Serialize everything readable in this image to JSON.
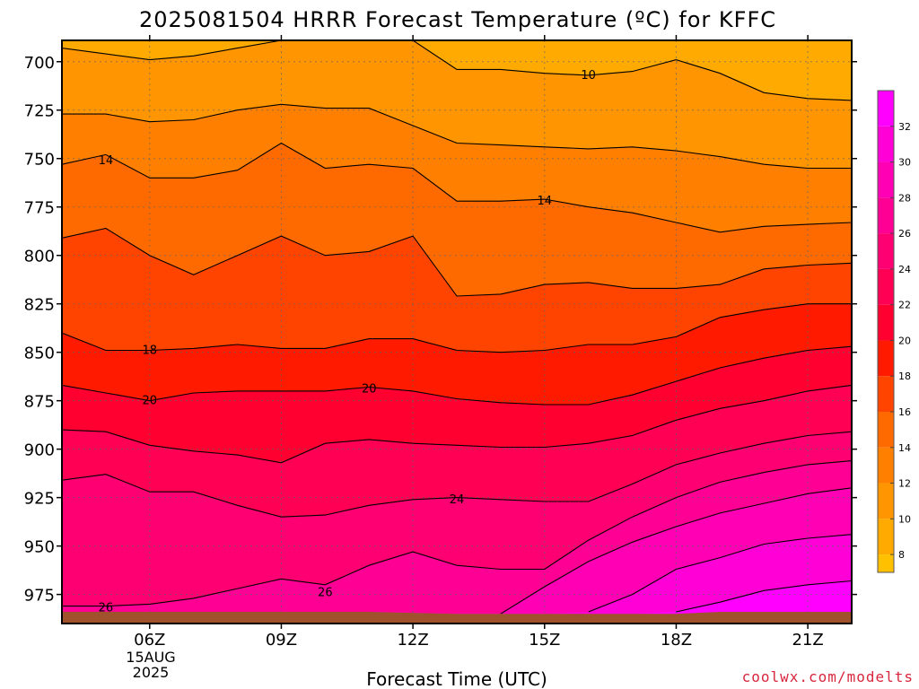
{
  "chart_data": {
    "type": "heatmap",
    "title": "2025081504 HRRR Forecast Temperature (ºC) for KFFC",
    "xlabel": "Forecast Time (UTC)",
    "ylabel": "",
    "x_hours": [
      4,
      5,
      6,
      7,
      8,
      9,
      10,
      11,
      12,
      13,
      14,
      15,
      16,
      17,
      18,
      19,
      20,
      21,
      22
    ],
    "xlim": [
      4,
      22
    ],
    "x_ticks": [
      {
        "hour": 6,
        "label": "06Z"
      },
      {
        "hour": 9,
        "label": "09Z"
      },
      {
        "hour": 12,
        "label": "12Z"
      },
      {
        "hour": 15,
        "label": "15Z"
      },
      {
        "hour": 18,
        "label": "18Z"
      },
      {
        "hour": 21,
        "label": "21Z"
      }
    ],
    "date_label": [
      "15AUG",
      "2025"
    ],
    "ylim": [
      689,
      990
    ],
    "y_ticks": [
      700,
      725,
      750,
      775,
      800,
      825,
      850,
      875,
      900,
      925,
      950,
      975
    ],
    "grid": true,
    "ground": {
      "color": "#a0522d",
      "pressure": [
        984,
        984,
        984,
        984,
        984,
        984,
        984,
        984,
        984.5,
        985,
        985,
        985,
        985,
        985,
        985,
        984,
        984,
        984,
        984
      ]
    },
    "isotherms": [
      {
        "temp": 10,
        "pressure": [
          693,
          696,
          699,
          697,
          693,
          689,
          689,
          689,
          689,
          704,
          704,
          706,
          707,
          705,
          699,
          706,
          716,
          719,
          720
        ]
      },
      {
        "temp": 12,
        "pressure": [
          727,
          727,
          731,
          730,
          725,
          722,
          724,
          724,
          733,
          742,
          743,
          744,
          745,
          744,
          746,
          749,
          753,
          755,
          755
        ]
      },
      {
        "temp": 14,
        "pressure": [
          753,
          748,
          760,
          760,
          756,
          742,
          755,
          753,
          755,
          772,
          772,
          771,
          775,
          778,
          783,
          788,
          785,
          784,
          783
        ]
      },
      {
        "temp": 16,
        "pressure": [
          791,
          786,
          800,
          810,
          800,
          790,
          800,
          798,
          790,
          821,
          820,
          815,
          814,
          817,
          817,
          815,
          807,
          805,
          804
        ]
      },
      {
        "temp": 18,
        "pressure": [
          840,
          849,
          849,
          848,
          846,
          848,
          848,
          843,
          843,
          849,
          850,
          849,
          846,
          846,
          842,
          832,
          828,
          825,
          825
        ]
      },
      {
        "temp": 20,
        "pressure": [
          867,
          871,
          875,
          871,
          870,
          870,
          870,
          868,
          870,
          874,
          876,
          877,
          877,
          872,
          865,
          858,
          853,
          849,
          847
        ]
      },
      {
        "temp": 22,
        "pressure": [
          890,
          891,
          898,
          901,
          903,
          907,
          897,
          895,
          897,
          898,
          899,
          899,
          897,
          893,
          885,
          879,
          875,
          870,
          867
        ]
      },
      {
        "temp": 24,
        "pressure": [
          916,
          913,
          922,
          922,
          929,
          935,
          934,
          929,
          926,
          925,
          926,
          927,
          927,
          918,
          908,
          902,
          897,
          893,
          891
        ]
      },
      {
        "temp": 26,
        "pressure": [
          981,
          981,
          980,
          977,
          972,
          967,
          970,
          960,
          953,
          960,
          962,
          962,
          947,
          935,
          925,
          917,
          912,
          908,
          906
        ]
      },
      {
        "temp": 28,
        "pressure": [
          null,
          null,
          null,
          null,
          null,
          null,
          null,
          null,
          null,
          null,
          985,
          971,
          958,
          948,
          940,
          933,
          928,
          923,
          920
        ]
      },
      {
        "temp": 30,
        "pressure": [
          null,
          null,
          null,
          null,
          null,
          null,
          null,
          null,
          null,
          null,
          null,
          null,
          984,
          975,
          962,
          956,
          949,
          946,
          944
        ]
      },
      {
        "temp": 32,
        "pressure": [
          null,
          null,
          null,
          null,
          null,
          null,
          null,
          null,
          null,
          null,
          null,
          null,
          null,
          null,
          984,
          979,
          973,
          970,
          968
        ]
      }
    ],
    "contour_labels": [
      {
        "text": "10",
        "hour": 16,
        "pressure": 707
      },
      {
        "text": "14",
        "hour": 5,
        "pressure": 751
      },
      {
        "text": "14",
        "hour": 15,
        "pressure": 772
      },
      {
        "text": "18",
        "hour": 6,
        "pressure": 849
      },
      {
        "text": "20",
        "hour": 6,
        "pressure": 875
      },
      {
        "text": "20",
        "hour": 11,
        "pressure": 869
      },
      {
        "text": "24",
        "hour": 13,
        "pressure": 926
      },
      {
        "text": "26",
        "hour": 10,
        "pressure": 974
      },
      {
        "text": "26",
        "hour": 5,
        "pressure": 982
      }
    ],
    "colorbar": {
      "ticks": [
        8,
        10,
        12,
        14,
        16,
        18,
        20,
        22,
        24,
        26,
        28,
        30,
        32
      ],
      "bands": [
        {
          "lo": 7,
          "hi": 8,
          "color": "#ffc000"
        },
        {
          "lo": 8,
          "hi": 10,
          "color": "#ffaa00"
        },
        {
          "lo": 10,
          "hi": 12,
          "color": "#ff9500"
        },
        {
          "lo": 12,
          "hi": 14,
          "color": "#ff8000"
        },
        {
          "lo": 14,
          "hi": 16,
          "color": "#ff6a00"
        },
        {
          "lo": 16,
          "hi": 18,
          "color": "#ff4400"
        },
        {
          "lo": 18,
          "hi": 20,
          "color": "#ff1a00"
        },
        {
          "lo": 20,
          "hi": 22,
          "color": "#ff0030"
        },
        {
          "lo": 22,
          "hi": 24,
          "color": "#ff0055"
        },
        {
          "lo": 24,
          "hi": 26,
          "color": "#ff0072"
        },
        {
          "lo": 26,
          "hi": 28,
          "color": "#ff0095"
        },
        {
          "lo": 28,
          "hi": 30,
          "color": "#ff00b5"
        },
        {
          "lo": 30,
          "hi": 32,
          "color": "#ff00d6"
        },
        {
          "lo": 32,
          "hi": 34,
          "color": "#ff00ff"
        }
      ]
    }
  },
  "footer": {
    "credit": "coolwx.com/modelts"
  }
}
